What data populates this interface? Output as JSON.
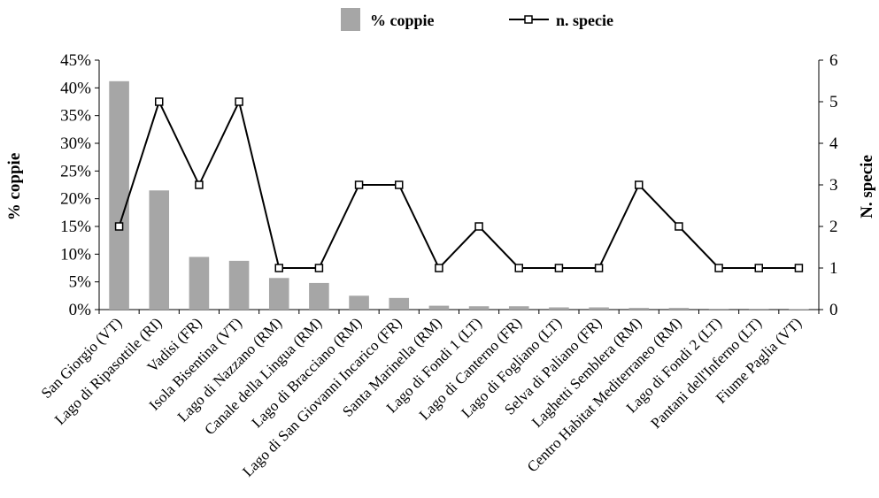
{
  "chart_data": {
    "type": "bar",
    "categories": [
      "San Giorgio (VT)",
      "Lago di Ripasottile (RI)",
      "Vadisi (FR)",
      "Isola Bisentina (VT)",
      "Lago di Nazzano (RM)",
      "Canale della Lingua (RM)",
      "Lago di Bracciano (RM)",
      "Lago di San Giovanni Incarico (FR)",
      "Santa Marinella (RM)",
      "Lago di Fondi 1 (LT)",
      "Lago di Canterno (FR)",
      "Lago di Fogliano (LT)",
      "Selva di Paliano (FR)",
      "Laghetti Semblera (RM)",
      "Centro Habitat Mediterraneo (RM)",
      "Lago di Fondi 2 (LT)",
      "Pantani dell'Inferno (LT)",
      "Fiume Paglia (VT)"
    ],
    "series": [
      {
        "name": "% coppie",
        "type": "bar",
        "axis": "left",
        "color": "#a6a6a6",
        "values": [
          41.2,
          21.5,
          9.5,
          8.8,
          5.7,
          4.8,
          2.5,
          2.1,
          0.7,
          0.6,
          0.6,
          0.4,
          0.4,
          0.3,
          0.3,
          0.15,
          0.15,
          0.1
        ]
      },
      {
        "name": "n. specie",
        "type": "line",
        "axis": "right",
        "color": "#000000",
        "marker": "square",
        "values": [
          2,
          5,
          3,
          5,
          1,
          1,
          3,
          3,
          1,
          2,
          1,
          1,
          1,
          3,
          2,
          1,
          1,
          1
        ]
      }
    ],
    "ylabel": "% coppie",
    "ylabel_right": "N. specie",
    "xlabel": "",
    "ylim": [
      0,
      45
    ],
    "ylim_right": [
      0,
      6
    ],
    "yticks": [
      "0%",
      "5%",
      "10%",
      "15%",
      "20%",
      "25%",
      "30%",
      "35%",
      "40%",
      "45%"
    ],
    "yticks_right": [
      "0",
      "1",
      "2",
      "3",
      "4",
      "5",
      "6"
    ],
    "grid": false,
    "legend_position": "top-center"
  }
}
